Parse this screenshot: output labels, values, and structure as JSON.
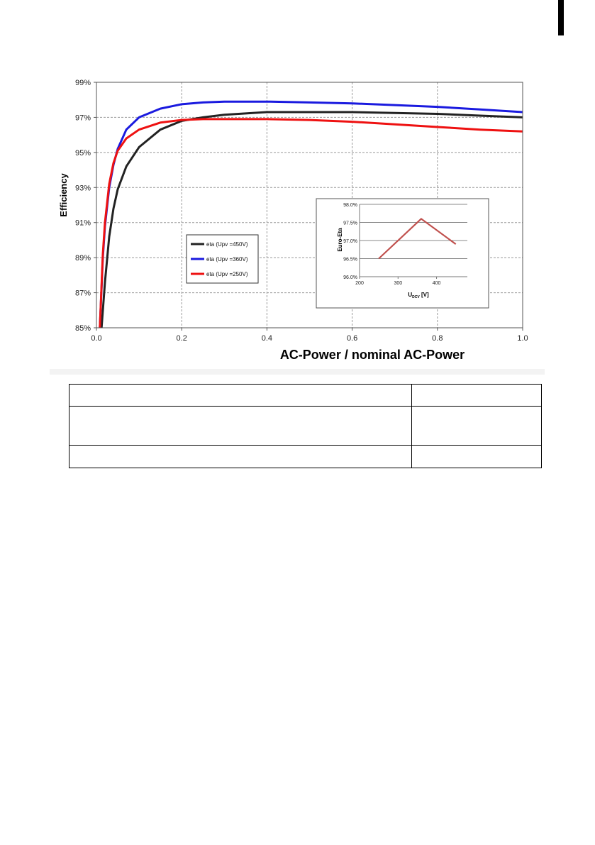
{
  "chart_data": [
    {
      "type": "line",
      "title": "",
      "xlabel": "AC-Power / nominal AC-Power",
      "ylabel": "Efficiency",
      "xlim": [
        0.0,
        1.0
      ],
      "ylim": [
        85,
        99
      ],
      "x_ticks": [
        "0.0",
        "0.2",
        "0.4",
        "0.6",
        "0.8",
        "1.0"
      ],
      "y_ticks": [
        "85%",
        "87%",
        "89%",
        "91%",
        "93%",
        "95%",
        "97%",
        "99%"
      ],
      "grid": true,
      "legend_position": "center-left",
      "series": [
        {
          "name": "eta (Upv =450V)",
          "color": "#222222",
          "x": [
            0.012,
            0.02,
            0.03,
            0.04,
            0.05,
            0.07,
            0.1,
            0.15,
            0.2,
            0.25,
            0.3,
            0.4,
            0.5,
            0.6,
            0.7,
            0.8,
            0.9,
            1.0
          ],
          "y": [
            85.0,
            87.6,
            90.2,
            91.8,
            92.9,
            94.2,
            95.3,
            96.3,
            96.8,
            97.0,
            97.15,
            97.3,
            97.3,
            97.3,
            97.25,
            97.2,
            97.1,
            97.0
          ]
        },
        {
          "name": "eta (Upv =360V)",
          "color": "#1a1adf",
          "x": [
            0.008,
            0.015,
            0.02,
            0.03,
            0.04,
            0.05,
            0.07,
            0.1,
            0.15,
            0.2,
            0.25,
            0.3,
            0.4,
            0.5,
            0.6,
            0.7,
            0.8,
            0.9,
            1.0
          ],
          "y": [
            85.0,
            89.0,
            90.8,
            93.0,
            94.3,
            95.2,
            96.3,
            97.0,
            97.5,
            97.75,
            97.85,
            97.9,
            97.9,
            97.85,
            97.8,
            97.7,
            97.6,
            97.45,
            97.3
          ]
        },
        {
          "name": "eta (Upv =250V)",
          "color": "#ee1111",
          "x": [
            0.008,
            0.015,
            0.02,
            0.03,
            0.04,
            0.05,
            0.07,
            0.1,
            0.15,
            0.2,
            0.25,
            0.3,
            0.4,
            0.5,
            0.6,
            0.7,
            0.8,
            0.9,
            1.0
          ],
          "y": [
            85.0,
            89.2,
            91.0,
            93.2,
            94.4,
            95.1,
            95.8,
            96.3,
            96.7,
            96.85,
            96.9,
            96.9,
            96.9,
            96.85,
            96.75,
            96.6,
            96.45,
            96.3,
            96.2
          ]
        }
      ]
    },
    {
      "type": "line",
      "title": "",
      "xlabel_main": "U",
      "xlabel_sub": "DCV",
      "xlabel_tail": " [V]",
      "ylabel": "Euro-Eta",
      "xlim": [
        200,
        480
      ],
      "ylim": [
        96.0,
        98.0
      ],
      "x_ticks": [
        "200",
        "300",
        "400"
      ],
      "y_ticks": [
        "96.0%",
        "96.5%",
        "97.0%",
        "97.5%",
        "98.0%"
      ],
      "grid": true,
      "series": [
        {
          "color": "#c0504d",
          "x": [
            250,
            360,
            450
          ],
          "y": [
            96.5,
            97.6,
            96.9
          ]
        }
      ]
    }
  ],
  "table": {
    "rows": [
      [
        "",
        ""
      ],
      [
        "",
        ""
      ],
      [
        "",
        ""
      ]
    ]
  }
}
